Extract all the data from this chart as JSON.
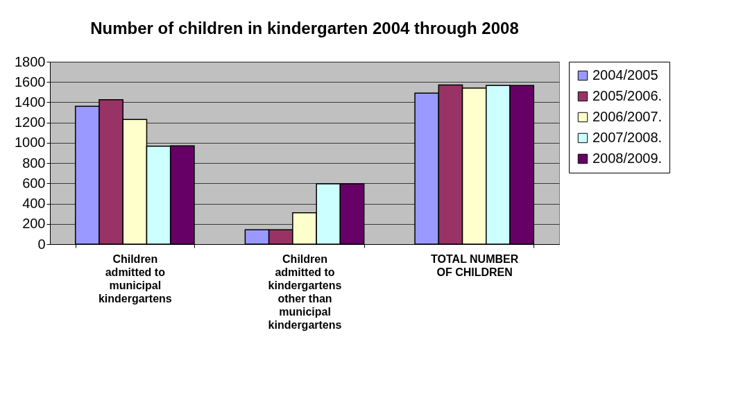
{
  "chart_data": {
    "type": "bar",
    "title": "Number of children in kindergarten 2004 through 2008",
    "categories": [
      "Children admitted to municipal kindergartens",
      "Children admitted to kindergartens other than municipal kindergartens",
      "TOTAL NUMBER OF CHILDREN"
    ],
    "series": [
      {
        "name": "2004/2005",
        "color": "#9999ff",
        "values": [
          1360,
          142,
          1490
        ]
      },
      {
        "name": "2005/2006.",
        "color": "#993366",
        "values": [
          1425,
          142,
          1570
        ]
      },
      {
        "name": "2006/2007.",
        "color": "#ffffcc",
        "values": [
          1230,
          310,
          1540
        ]
      },
      {
        "name": "2007/2008.",
        "color": "#ccffff",
        "values": [
          967,
          595,
          1565
        ]
      },
      {
        "name": "2008/2009.",
        "color": "#660066",
        "values": [
          970,
          595,
          1565
        ]
      }
    ],
    "ylim": [
      0,
      1800
    ],
    "yticks": [
      0,
      200,
      400,
      600,
      800,
      1000,
      1200,
      1400,
      1600,
      1800
    ],
    "grid": "y",
    "legend": "right"
  }
}
